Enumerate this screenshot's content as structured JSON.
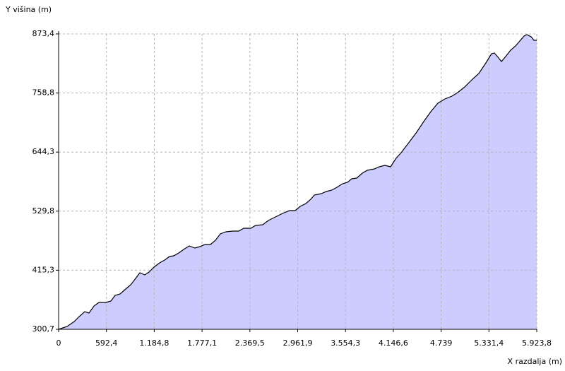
{
  "chart_data": {
    "type": "area",
    "y_label": "Y višina (m)",
    "x_label": "X razdalja (m)",
    "x": [
      0,
      105,
      193,
      254,
      324,
      376,
      438,
      499,
      586,
      648,
      700,
      761,
      831,
      893,
      954,
      1006,
      1068,
      1120,
      1181,
      1251,
      1313,
      1374,
      1426,
      1488,
      1549,
      1619,
      1689,
      1750,
      1811,
      1881,
      1943,
      2004,
      2074,
      2161,
      2231,
      2293,
      2380,
      2441,
      2529,
      2599,
      2686,
      2774,
      2861,
      2931,
      2993,
      3063,
      3124,
      3168,
      3255,
      3316,
      3386,
      3448,
      3518,
      3579,
      3632,
      3693,
      3763,
      3824,
      3912,
      3973,
      4043,
      4113,
      4174,
      4244,
      4331,
      4436,
      4524,
      4611,
      4699,
      4786,
      4874,
      4944,
      5031,
      5119,
      5206,
      5294,
      5364,
      5399,
      5451,
      5486,
      5539,
      5600,
      5661,
      5714,
      5766,
      5801,
      5854,
      5889,
      5923.8
    ],
    "values": [
      300.7,
      306.2,
      315.8,
      325.4,
      335.0,
      332.2,
      345.9,
      352.8,
      352.8,
      355.5,
      366.5,
      369.2,
      378.8,
      387.0,
      399.3,
      410.3,
      406.2,
      411.7,
      421.3,
      429.5,
      435.0,
      441.8,
      443.2,
      448.7,
      455.5,
      462.4,
      458.3,
      461.0,
      465.1,
      465.1,
      473.3,
      485.7,
      489.8,
      491.1,
      491.1,
      496.6,
      496.6,
      502.1,
      503.5,
      511.7,
      518.5,
      525.4,
      530.9,
      530.9,
      539.1,
      544.6,
      552.8,
      561.0,
      563.8,
      567.9,
      570.6,
      576.1,
      582.9,
      585.7,
      592.5,
      593.9,
      603.5,
      609.0,
      611.7,
      615.8,
      618.6,
      615.8,
      630.9,
      643.2,
      661.1,
      683.0,
      703.5,
      722.7,
      739.1,
      747.4,
      752.8,
      759.7,
      770.6,
      784.3,
      796.7,
      817.2,
      835.1,
      836.4,
      826.8,
      820.0,
      829.6,
      841.9,
      850.1,
      859.7,
      869.3,
      872.0,
      867.9,
      861.1,
      861.1
    ],
    "color": "#ccccff",
    "line_color": "#000000",
    "grid": true,
    "xlim": [
      0,
      5923.8
    ],
    "xticks": [
      0,
      {
        "value": 592.4,
        "label": "592,4"
      },
      {
        "value": 1184.8,
        "label": "1.184,8"
      },
      {
        "value": 1777.1,
        "label": "1.777,1"
      },
      {
        "value": 2369.5,
        "label": "2.369,5"
      },
      {
        "value": 2961.9,
        "label": "2.961,9"
      },
      {
        "value": 3554.3,
        "label": "3.554,3"
      },
      {
        "value": 4146.6,
        "label": "4.146,6"
      },
      {
        "value": 4739,
        "label": "4.739"
      },
      {
        "value": 5331.4,
        "label": "5.331,4"
      },
      {
        "value": 5923.8,
        "label": "5.923,8"
      }
    ],
    "ylim": [
      300.7,
      873.4
    ],
    "yticks": [
      {
        "value": 300.7,
        "label": "300,7"
      },
      {
        "value": 415.3,
        "label": "415,3"
      },
      {
        "value": 529.8,
        "label": "529,8"
      },
      {
        "value": 644.3,
        "label": "644,3"
      },
      {
        "value": 758.8,
        "label": "758,8"
      },
      {
        "value": 873.4,
        "label": "873,4"
      }
    ]
  }
}
